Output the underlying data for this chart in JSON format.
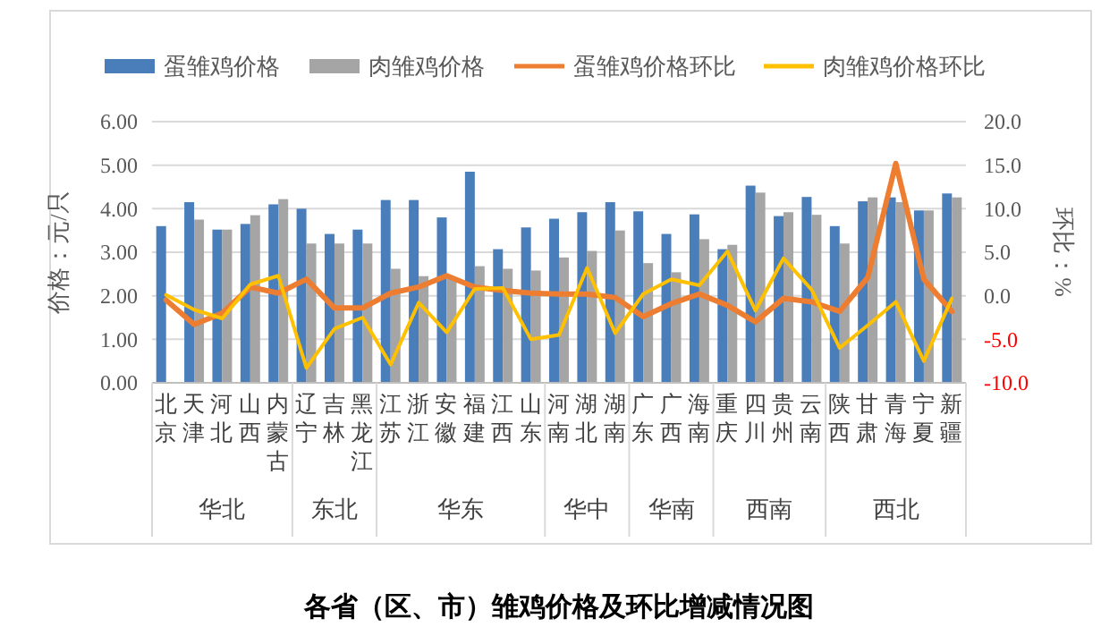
{
  "chart_data": {
    "type": "bar",
    "title": "各省（区、市）雏鸡价格及环比增减情况图",
    "ylabel": "价格：元/只",
    "y2label": "环比：%",
    "categories": [
      "北京",
      "天津",
      "河北",
      "山西",
      "内蒙古",
      "辽宁",
      "吉林",
      "黑龙江",
      "江苏",
      "浙江",
      "安徽",
      "福建",
      "江西",
      "山东",
      "河南",
      "湖北",
      "湖南",
      "广东",
      "广西",
      "海南",
      "重庆",
      "四川",
      "贵州",
      "云南",
      "陕西",
      "甘肃",
      "青海",
      "宁夏",
      "新疆"
    ],
    "series": [
      {
        "name": "蛋雏鸡价格",
        "color": "#4a7ebb",
        "values": [
          3.6,
          4.15,
          3.52,
          3.65,
          4.1,
          4.0,
          3.42,
          3.52,
          4.2,
          4.2,
          3.8,
          4.85,
          3.07,
          3.57,
          3.77,
          3.92,
          4.15,
          3.94,
          3.42,
          3.87,
          3.07,
          4.53,
          3.83,
          4.27,
          3.6,
          4.17,
          4.26,
          3.96,
          4.35
        ]
      },
      {
        "name": "肉雏鸡价格",
        "color": "#a5a5a5",
        "values": [
          null,
          3.75,
          3.52,
          3.85,
          4.22,
          3.2,
          3.2,
          3.2,
          2.62,
          2.45,
          2.4,
          2.68,
          2.62,
          2.58,
          2.88,
          3.03,
          3.5,
          2.75,
          2.54,
          3.3,
          3.17,
          4.37,
          3.92,
          3.86,
          3.2,
          4.26,
          4.15,
          3.96,
          4.26
        ]
      },
      {
        "name": "蛋雏鸡价格环比",
        "type": "line",
        "axis": "y2",
        "color": "#ed7d31",
        "values": [
          -0.5,
          -3.3,
          -2.0,
          1.0,
          0.3,
          1.9,
          -1.4,
          -1.4,
          0.3,
          1.0,
          2.3,
          1.0,
          0.6,
          0.3,
          0.2,
          0.2,
          -0.2,
          -2.4,
          -0.9,
          0.2,
          -1.1,
          -3.0,
          -0.3,
          -0.7,
          -1.8,
          2.1,
          15.2,
          1.9,
          -1.8
        ]
      },
      {
        "name": "肉雏鸡价格环比",
        "type": "line",
        "axis": "y2",
        "color": "#ffc000",
        "values": [
          0.1,
          -1.6,
          -2.6,
          1.3,
          2.3,
          -8.3,
          -3.8,
          -2.5,
          -7.9,
          -0.8,
          -4.2,
          0.8,
          0.9,
          -5.0,
          -4.5,
          3.2,
          -4.3,
          0.2,
          1.9,
          1.2,
          5.1,
          -1.7,
          4.3,
          0.7,
          -6.0,
          -3.4,
          -0.7,
          -7.5,
          -0.3
        ]
      }
    ],
    "ylim": [
      0,
      6
    ],
    "yticks": [
      {
        "value": 0,
        "label": "0.00"
      },
      {
        "value": 1,
        "label": "1.00"
      },
      {
        "value": 2,
        "label": "2.00"
      },
      {
        "value": 3,
        "label": "3.00"
      },
      {
        "value": 4,
        "label": "4.00"
      },
      {
        "value": 5,
        "label": "5.00"
      },
      {
        "value": 6,
        "label": "6.00"
      }
    ],
    "y2lim": [
      -10,
      20
    ],
    "y2ticks": [
      {
        "value": -10,
        "label": "-10.0"
      },
      {
        "value": -5,
        "label": "-5.0"
      },
      {
        "value": 0,
        "label": "0.0"
      },
      {
        "value": 5,
        "label": "5.0"
      },
      {
        "value": 10,
        "label": "10.0"
      },
      {
        "value": 15,
        "label": "15.0"
      },
      {
        "value": 20,
        "label": "20.0"
      }
    ],
    "annotations": [
      "华北",
      "东北",
      "华东",
      "华中",
      "华南",
      "西南",
      "西北"
    ],
    "grid": "y",
    "legend": "top",
    "marker": "none",
    "line_style": "solid"
  }
}
